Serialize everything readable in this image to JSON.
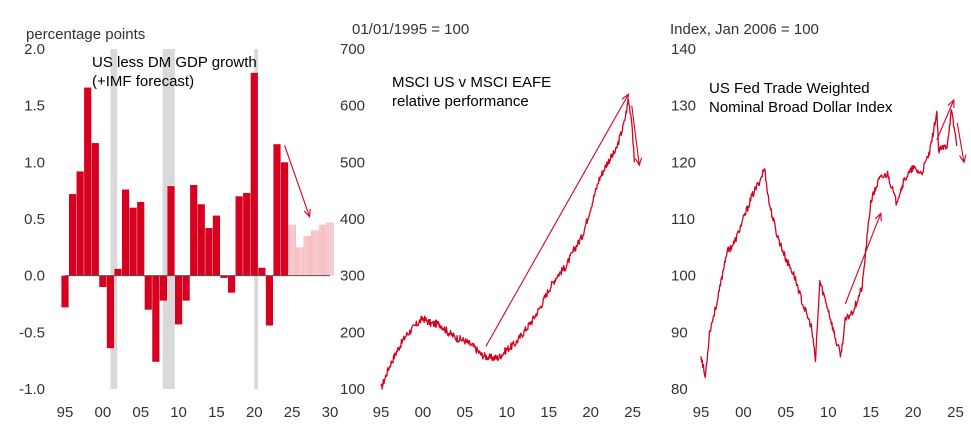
{
  "colors": {
    "accent": "#d7001f",
    "forecast": "#f2a6ad",
    "recession": "#d9d9d9",
    "axis": "#555555"
  },
  "chart_data": [
    {
      "type": "bar",
      "unit_label": "percentage points",
      "annotation": [
        "US less DM GDP growth",
        "(+IMF forecast)"
      ],
      "xlim": [
        1995,
        2030
      ],
      "ylim": [
        -1.0,
        2.0
      ],
      "x_ticks": [
        "95",
        "00",
        "05",
        "10",
        "15",
        "20",
        "25",
        "30"
      ],
      "y_ticks": [
        "2.0",
        "1.5",
        "1.0",
        "0.5",
        "0.0",
        "-0.5",
        "-1.0"
      ],
      "recession_bands": [
        [
          2001.0,
          2001.9
        ],
        [
          2007.9,
          2009.5
        ],
        [
          2020.0,
          2020.5
        ]
      ],
      "categories": [
        1995,
        1996,
        1997,
        1998,
        1999,
        2000,
        2001,
        2002,
        2003,
        2004,
        2005,
        2006,
        2007,
        2008,
        2009,
        2010,
        2011,
        2012,
        2013,
        2014,
        2015,
        2016,
        2017,
        2018,
        2019,
        2020,
        2021,
        2022,
        2023,
        2024
      ],
      "values": [
        -0.28,
        0.72,
        0.92,
        1.66,
        1.17,
        -0.1,
        -0.64,
        0.06,
        0.76,
        0.6,
        0.65,
        -0.3,
        -0.76,
        -0.22,
        0.79,
        -0.43,
        -0.22,
        0.8,
        0.63,
        0.42,
        0.53,
        -0.02,
        -0.15,
        0.7,
        0.73,
        1.79,
        0.07,
        -0.44,
        1.16,
        1.0
      ],
      "forecast_categories": [
        2025,
        2026,
        2027,
        2028,
        2029,
        2030
      ],
      "forecast_values": [
        0.45,
        0.25,
        0.35,
        0.4,
        0.45,
        0.47
      ],
      "arrow": {
        "from": [
          2024.0,
          1.15
        ],
        "to": [
          2027.3,
          0.52
        ]
      }
    },
    {
      "type": "line",
      "unit_label": "01/01/1995 = 100",
      "annotation": [
        "MSCI US v MSCI EAFE",
        "relative performance"
      ],
      "xlim": [
        1995,
        2026
      ],
      "ylim": [
        100,
        700
      ],
      "x_ticks": [
        "95",
        "00",
        "05",
        "10",
        "15",
        "20",
        "25"
      ],
      "y_ticks": [
        "700",
        "600",
        "500",
        "400",
        "300",
        "200",
        "100"
      ],
      "x": [
        1995,
        1996,
        1997,
        1998,
        1999,
        2000,
        2001,
        2002,
        2003,
        2004,
        2005,
        2006,
        2007,
        2008,
        2009,
        2010,
        2011,
        2012,
        2013,
        2014,
        2015,
        2016,
        2017,
        2018,
        2019,
        2020,
        2021,
        2022,
        2023,
        2024,
        2024.5,
        2024.9,
        2025.2
      ],
      "y": [
        100,
        140,
        170,
        195,
        210,
        225,
        215,
        215,
        200,
        190,
        185,
        175,
        160,
        155,
        155,
        170,
        180,
        200,
        220,
        245,
        275,
        300,
        315,
        345,
        370,
        420,
        470,
        500,
        520,
        570,
        610,
        575,
        500
      ],
      "arrows": [
        {
          "from": [
            2007.5,
            175
          ],
          "to": [
            2024.5,
            620
          ]
        },
        {
          "from": [
            2024.9,
            600
          ],
          "to": [
            2025.8,
            495
          ]
        }
      ]
    },
    {
      "type": "line",
      "unit_label": "Index, Jan 2006 = 100",
      "annotation": [
        "US Fed Trade Weighted",
        "Nominal Broad Dollar Index"
      ],
      "xlim": [
        1995,
        2026
      ],
      "ylim": [
        80,
        140
      ],
      "x_ticks": [
        "95",
        "00",
        "05",
        "10",
        "15",
        "20",
        "25"
      ],
      "y_ticks": [
        "140",
        "130",
        "120",
        "110",
        "100",
        "90",
        "80"
      ],
      "x": [
        1995,
        1995.5,
        1996,
        1997,
        1998,
        1999,
        2000,
        2001,
        2002,
        2002.5,
        2003,
        2004,
        2005,
        2006,
        2007,
        2008,
        2008.5,
        2009,
        2010,
        2011,
        2011.5,
        2012,
        2013,
        2014,
        2015,
        2016,
        2017,
        2018,
        2019,
        2020,
        2021,
        2022,
        2022.8,
        2023,
        2024,
        2024.5,
        2025.2
      ],
      "y": [
        86,
        82,
        90,
        96,
        104,
        106,
        110,
        114,
        117,
        119,
        113,
        107,
        103,
        100,
        95,
        91,
        85,
        99,
        94,
        88,
        86,
        92,
        94,
        98,
        113,
        117,
        118,
        113,
        117,
        119,
        118,
        122,
        129,
        122,
        123,
        129,
        123
      ],
      "arrows": [
        {
          "from": [
            2012,
            95
          ],
          "to": [
            2016.2,
            111
          ]
        },
        {
          "from": [
            2022.8,
            124
          ],
          "to": [
            2024.8,
            131
          ]
        },
        {
          "from": [
            2025.2,
            127
          ],
          "to": [
            2026,
            120
          ]
        }
      ]
    }
  ]
}
